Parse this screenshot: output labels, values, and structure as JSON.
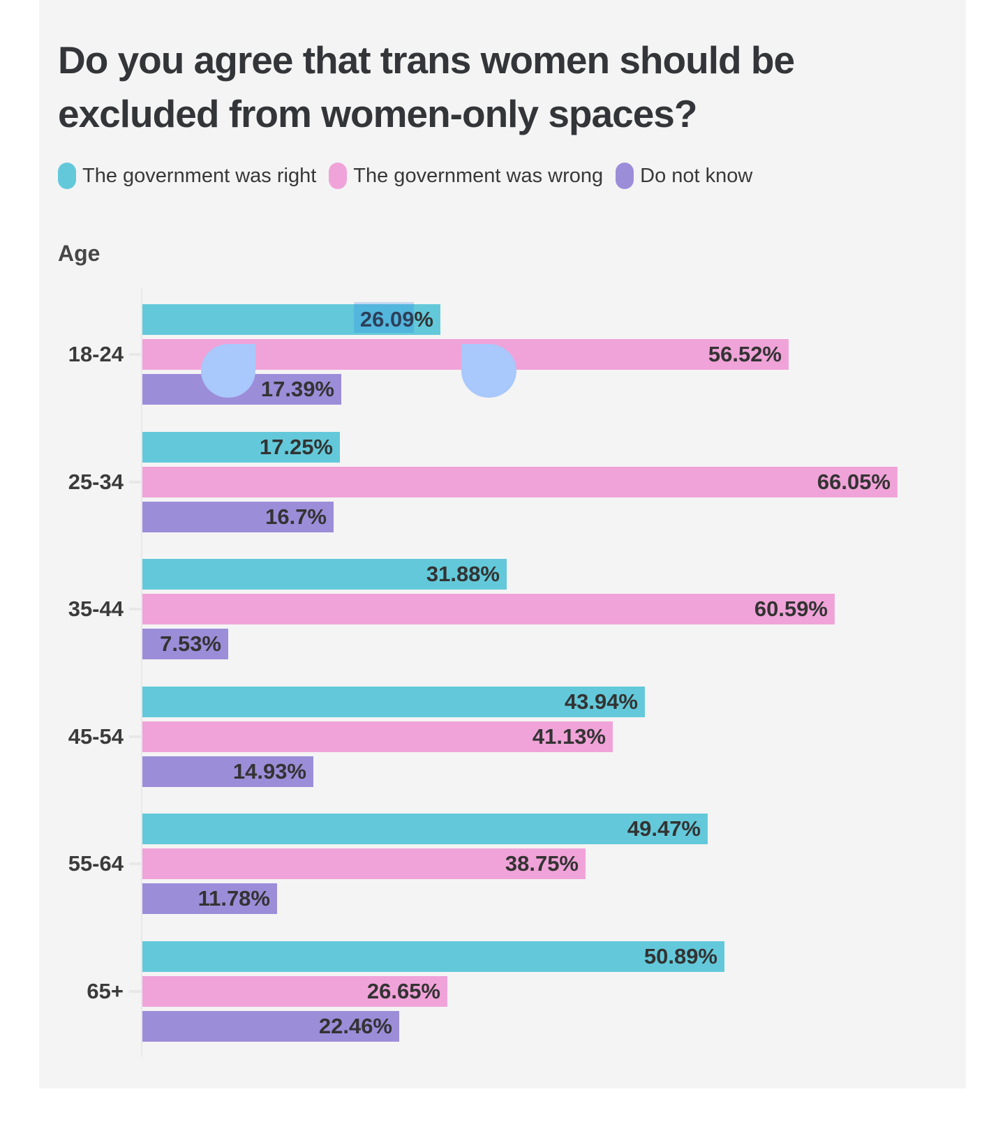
{
  "page": {
    "background": "#ffffff",
    "panel_background": "#f4f4f4"
  },
  "title": {
    "line1": "Do you agree that trans women should be",
    "line2": "excluded from women-only spaces?"
  },
  "legend": {
    "items": [
      {
        "label": "The government was right",
        "color": "#63c9da"
      },
      {
        "label": "The government was wrong",
        "color": "#f0a3d8"
      },
      {
        "label": "Do not know",
        "color": "#9c8dd9"
      }
    ]
  },
  "axis_label": "Age",
  "chart_data": {
    "type": "bar",
    "orientation": "horizontal",
    "title": "Do you agree that trans women should be excluded from women-only spaces?",
    "categories": [
      "18-24",
      "25-34",
      "35-44",
      "45-54",
      "55-64",
      "65+"
    ],
    "series": [
      {
        "name": "The government was right",
        "color": "#63c9da",
        "values": [
          26.09,
          17.25,
          31.88,
          43.94,
          49.47,
          50.89
        ]
      },
      {
        "name": "The government was wrong",
        "color": "#f0a3d8",
        "values": [
          56.52,
          66.05,
          60.59,
          41.13,
          38.75,
          26.65
        ]
      },
      {
        "name": "Do not know",
        "color": "#9c8dd9",
        "values": [
          17.39,
          16.7,
          7.53,
          14.93,
          11.78,
          22.46
        ]
      }
    ],
    "value_suffix": "%",
    "xlabel": "",
    "ylabel": "Age",
    "xlim": [
      0,
      70
    ],
    "grid": false,
    "legend_position": "top",
    "value_labels_shown_inside_bars": true
  },
  "selection": {
    "selected_text": "26.09",
    "highlight_color": "rgba(26,115,232,0.22)",
    "handle_color": "#a9c8fb"
  }
}
